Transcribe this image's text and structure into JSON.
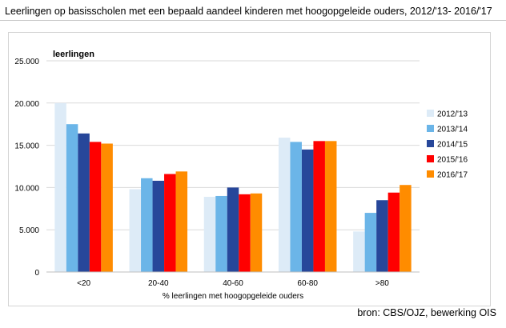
{
  "header": {
    "title": "Leerlingen op basisscholen met een bepaald aandeel kinderen met hoogopgeleide ouders, 2012/'13- 2016/'17"
  },
  "footer": {
    "source": "bron: CBS/OJZ, bewerking OIS"
  },
  "chart_data": {
    "type": "bar",
    "title": "Leerlingen op basisscholen met een bepaald aandeel kinderen met hoogopgeleide ouders, 2012/'13- 2016/'17",
    "ylabel": "leerlingen",
    "xlabel": "% leerlingen met hoogopgeleide ouders",
    "ylim": [
      0,
      25000
    ],
    "yticks": [
      0,
      5000,
      10000,
      15000,
      20000,
      25000
    ],
    "ytick_labels": [
      "0",
      "5.000",
      "10.000",
      "15.000",
      "20.000",
      "25.000"
    ],
    "grid": true,
    "legend_position": "right",
    "categories": [
      "<20",
      "20-40",
      "40-60",
      "60-80",
      ">80"
    ],
    "series": [
      {
        "name": "2012/'13",
        "color": "#ddebf7",
        "values": [
          20000,
          9800,
          8900,
          15900,
          4800
        ]
      },
      {
        "name": "2013/'14",
        "color": "#6bb5e8",
        "values": [
          17500,
          11100,
          9000,
          15400,
          7000
        ]
      },
      {
        "name": "2014/'15",
        "color": "#27479a",
        "values": [
          16400,
          10800,
          10000,
          14500,
          8500
        ]
      },
      {
        "name": "2015/'16",
        "color": "#ff0000",
        "values": [
          15400,
          11600,
          9200,
          15500,
          9400
        ]
      },
      {
        "name": "2016/'17",
        "color": "#ff8c00",
        "values": [
          15200,
          11900,
          9300,
          15500,
          10300
        ]
      }
    ]
  }
}
